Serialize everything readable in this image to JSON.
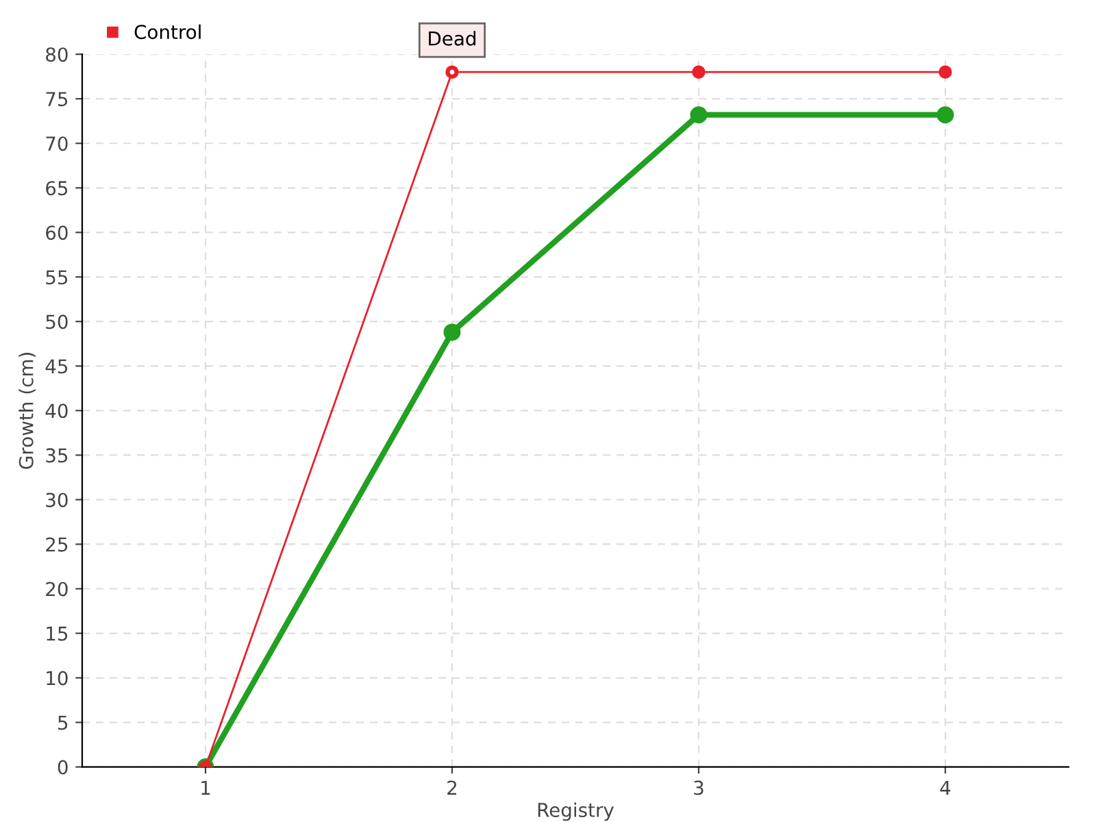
{
  "chart_data": {
    "type": "line",
    "xlabel": "Registry",
    "ylabel": "Growth (cm)",
    "x": [
      1,
      2,
      3,
      4
    ],
    "xlim": [
      0.5,
      4.5
    ],
    "xticks": [
      1,
      2,
      3,
      4
    ],
    "ylim": [
      0,
      80
    ],
    "yticks": [
      0,
      5,
      10,
      15,
      20,
      25,
      30,
      35,
      40,
      45,
      50,
      55,
      60,
      65,
      70,
      75,
      80
    ],
    "series": [
      {
        "color": "#22a022",
        "values": [
          0,
          48.8,
          73.2,
          73.2
        ]
      },
      {
        "name": "Control",
        "color": "#e8212b",
        "values": [
          0,
          78,
          78,
          78
        ]
      }
    ],
    "annotations": [
      {
        "text": "Dead",
        "x": 2,
        "y": 78
      }
    ],
    "grid": true,
    "legend": "top left",
    "marker": "circle",
    "line_style": "solid"
  }
}
